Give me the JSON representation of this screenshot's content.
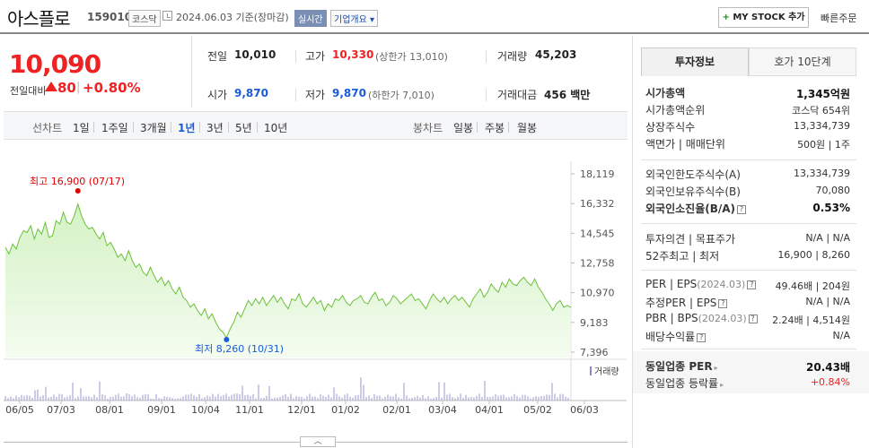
{
  "header": {
    "title": "아스플로",
    "code": "159010",
    "market": "코스닥",
    "date_text": "2024.06.03  기준(장마감)",
    "realtime": "실시간",
    "company_info": "기업개요 ▾",
    "mystock_plus": "+",
    "mystock_label": " MY STOCK 추가",
    "quick_order": "빠른주문"
  },
  "price": {
    "current": "10,090",
    "change_label": "전일대비",
    "change_value": "80",
    "change_sep": "|",
    "change_pct": "+0.80%"
  },
  "quote": {
    "prev_label": "전일",
    "prev_value": "10,010",
    "high_label": "고가",
    "high_value": "10,330",
    "upper_limit": "(상한가 13,010)",
    "volume_label": "거래량",
    "volume_value": "45,203",
    "open_label": "시가",
    "open_value": "9,870",
    "low_label": "저가",
    "low_value": "9,870",
    "lower_limit": "(하한가 7,010)",
    "amount_label": "거래대금",
    "amount_value": "456 백만"
  },
  "period_bar": {
    "line_chart_label": "선차트",
    "line_periods": [
      "1일",
      "1주일",
      "3개월",
      "1년",
      "3년",
      "5년",
      "10년"
    ],
    "active_period": "1년",
    "candle_label": "봉차트",
    "candle_periods": [
      "일봉",
      "주봉",
      "월봉"
    ]
  },
  "chart_data": {
    "type": "area",
    "y_ticks": [
      "18,119",
      "16,332",
      "14,545",
      "12,758",
      "10,970",
      "9,183",
      "7,396"
    ],
    "ylim": [
      7396,
      18119
    ],
    "x_ticks": [
      "06/05",
      "07/03",
      "08/01",
      "09/01",
      "10/04",
      "11/01",
      "12/01",
      "01/02",
      "02/01",
      "03/04",
      "04/01",
      "05/02",
      "06/03"
    ],
    "high_label": "최고 16,900 (07/17)",
    "low_label": "최저 8,260 (10/31)",
    "series": [
      {
        "values": [
          13700,
          13300,
          13900,
          13600,
          14300,
          14700,
          14600,
          15000,
          14200,
          14800,
          14500,
          15200,
          14300,
          14400,
          15300,
          15100,
          15800,
          15200,
          15100,
          15600,
          16300,
          15600,
          15100,
          14800,
          14900,
          14500,
          14200,
          14600,
          13800,
          14000,
          13600,
          13100,
          13300,
          12900,
          13500,
          12900,
          12500,
          12700,
          12200,
          12000,
          12500,
          12000,
          11600,
          11900,
          11400,
          11700,
          11200,
          10900,
          11300,
          10700,
          10500,
          10100,
          10300,
          9900,
          9600,
          10000,
          9400,
          9700,
          9200,
          8800,
          8600,
          8260,
          8800,
          9200,
          9800,
          9500,
          10000,
          10500,
          10200,
          10600,
          10300,
          10700,
          10200,
          10500,
          10800,
          10400,
          10700,
          10300,
          10000,
          10600,
          10500,
          10900,
          10300,
          10100,
          10400,
          10700,
          10300,
          10500,
          9900,
          10300,
          10100,
          10600,
          10500,
          10800,
          10400,
          10200,
          10500,
          10600,
          10800,
          10400,
          10300,
          10700,
          11000,
          10500,
          10600,
          10200,
          10400,
          10800,
          10600,
          10300,
          10500,
          10700,
          10900,
          10500,
          10600,
          10300,
          10000,
          10500,
          10900,
          10600,
          10400,
          10700,
          10300,
          10600,
          10800,
          10500,
          10700,
          10400,
          10100,
          10600,
          10900,
          11200,
          10700,
          11000,
          11500,
          11200,
          11000,
          11600,
          11300,
          11800,
          11500,
          11400,
          11700,
          11900,
          11600,
          11400,
          11800,
          11300,
          11000,
          10600,
          10300,
          9900,
          10300,
          10500,
          10100,
          10200,
          10090
        ]
      }
    ],
    "volume_label": "거래량"
  },
  "right_panel": {
    "tab_invest": "투자정보",
    "tab_hoga": "호가 10단계",
    "rows1": [
      {
        "label": "시가총액",
        "value": "1,345억원"
      },
      {
        "label": "시가총액순위",
        "value": "코스닥 654위"
      },
      {
        "label": "상장주식수",
        "value": "13,334,739"
      },
      {
        "label": "액면가 | 매매단위",
        "value": "500원 | 1주"
      }
    ],
    "rows2": [
      {
        "label": "외국인한도주식수(A)",
        "value": "13,334,739"
      },
      {
        "label": "외국인보유주식수(B)",
        "value": "70,080"
      },
      {
        "label": "외국인소진율(B/A)",
        "value": "0.53%"
      }
    ],
    "rows3": [
      {
        "label": "투자의견 | 목표주가",
        "value": "N/A | N/A"
      },
      {
        "label": "52주최고 | 최저",
        "value": "16,900 | 8,260"
      }
    ],
    "rows4": [
      {
        "label": "PER | EPS",
        "label_grey": "(2024.03)",
        "value": "49.46배 | 204원"
      },
      {
        "label": "추정PER | EPS",
        "value": "N/A | N/A"
      },
      {
        "label": "PBR | BPS",
        "label_grey": "(2024.03)",
        "value": "2.24배 | 4,514원"
      },
      {
        "label": "배당수익률",
        "value": "N/A"
      }
    ],
    "rows5": [
      {
        "label": "동일업종 PER",
        "value": "20.43배"
      },
      {
        "label": "동일업종 등락률",
        "value": "+0.84%"
      }
    ],
    "q": "?",
    "arrow": "▸"
  },
  "expand": "︿"
}
